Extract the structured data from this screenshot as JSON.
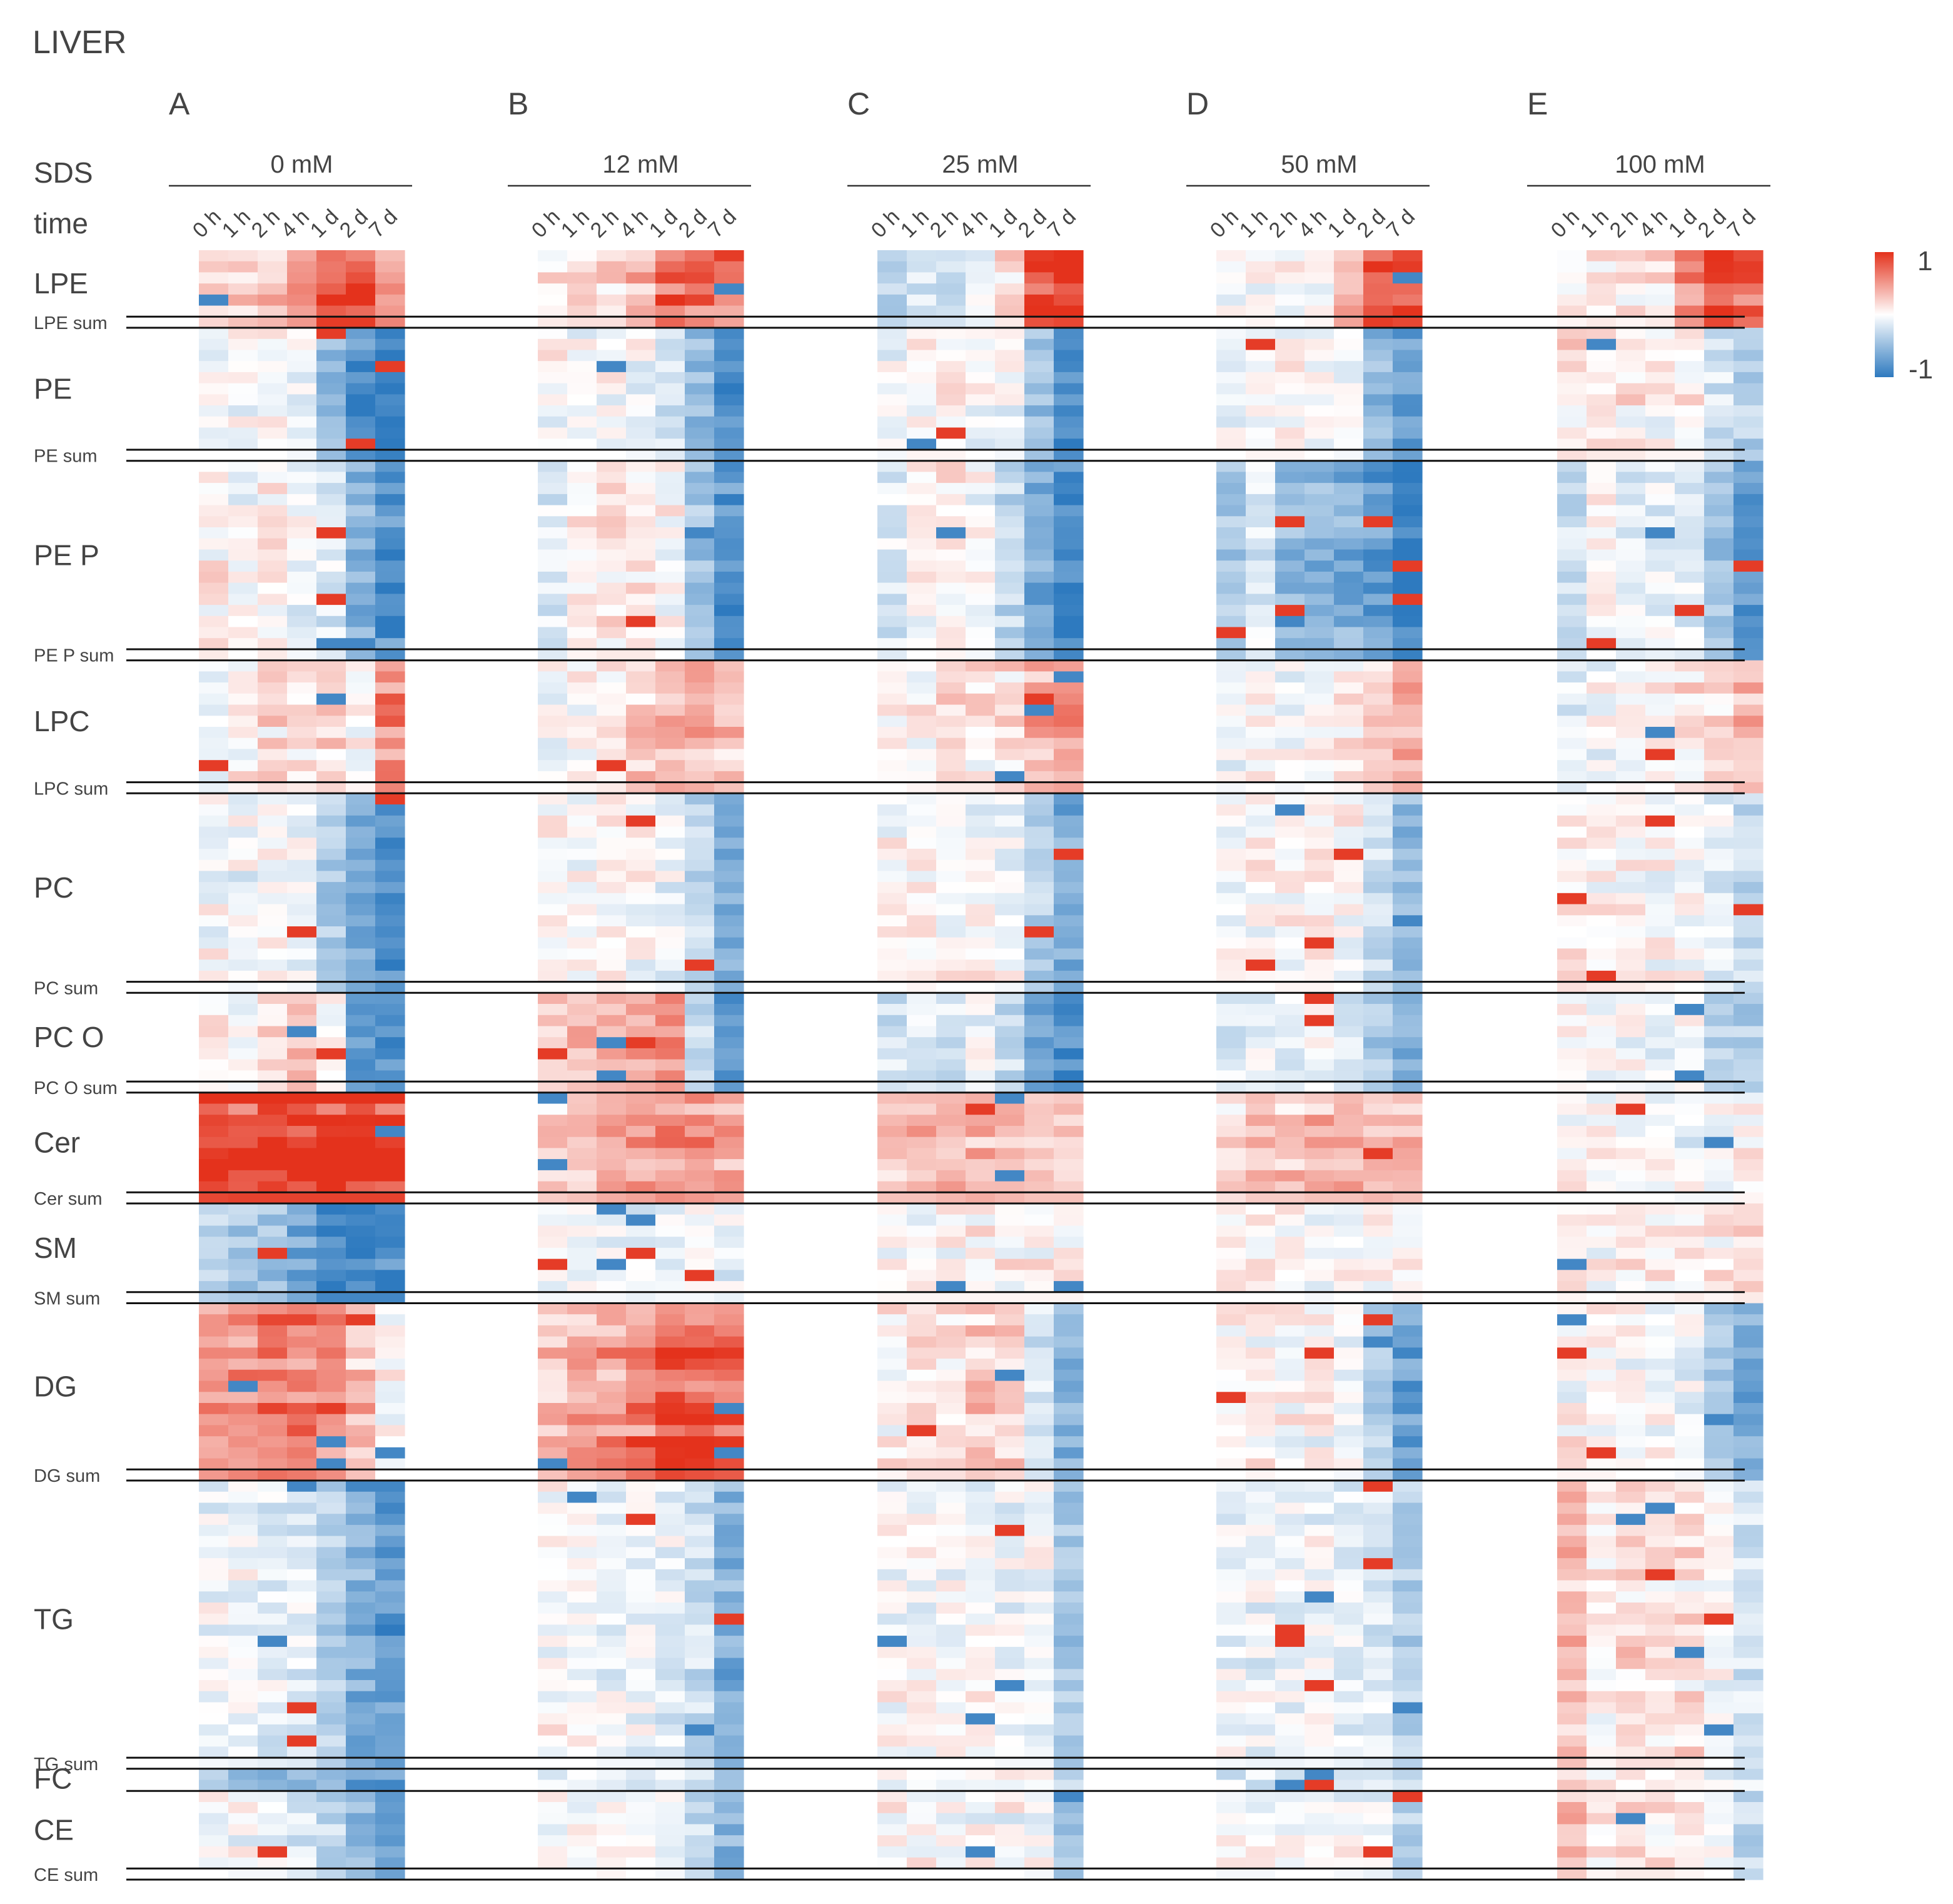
{
  "chart_data": {
    "type": "heatmap",
    "title": "LIVER",
    "sds_label": "SDS",
    "time_label": "time",
    "panels": [
      {
        "letter": "A",
        "sds": "0 mM"
      },
      {
        "letter": "B",
        "sds": "12 mM"
      },
      {
        "letter": "C",
        "sds": "25 mM"
      },
      {
        "letter": "D",
        "sds": "50 mM"
      },
      {
        "letter": "E",
        "sds": "100 mM"
      }
    ],
    "timepoints": [
      "0 h",
      "1 h",
      "2 h",
      "4 h",
      "1 d",
      "2 d",
      "7 d"
    ],
    "colorbar": {
      "max_label": "1",
      "min_label": "-1",
      "vmin": -1,
      "vmax": 1,
      "high_color": "#e4321c",
      "mid_color": "#ffffff",
      "low_color": "#2e7abf"
    },
    "groups": [
      {
        "name": "LPE",
        "sum_label": "LPE sum",
        "rows": 7,
        "trend": [
          [
            0.2,
            0.3,
            0.35,
            0.5,
            0.95,
            0.95,
            0.6
          ],
          [
            0.1,
            0.15,
            0.15,
            0.35,
            0.75,
            0.6,
            0.45
          ],
          [
            -0.3,
            -0.2,
            -0.2,
            -0.1,
            0.1,
            0.85,
            0.9
          ],
          [
            0.0,
            0.05,
            0.0,
            0.05,
            0.45,
            0.95,
            0.9
          ],
          [
            0.05,
            0.1,
            0.05,
            0.1,
            0.5,
            0.9,
            0.7
          ]
        ]
      },
      {
        "name": "PE",
        "sum_label": "PE sum",
        "rows": 12,
        "trend": [
          [
            0.0,
            0.0,
            0.0,
            -0.05,
            -0.5,
            -0.85,
            -0.95
          ],
          [
            0.0,
            0.0,
            0.0,
            -0.05,
            -0.15,
            -0.5,
            -0.8
          ],
          [
            -0.05,
            0.05,
            0.05,
            0.0,
            -0.05,
            -0.45,
            -0.85
          ],
          [
            0.0,
            0.05,
            0.05,
            0.0,
            -0.05,
            -0.5,
            -0.7
          ],
          [
            0.15,
            0.1,
            0.1,
            0.05,
            0.05,
            -0.2,
            -0.35
          ]
        ]
      },
      {
        "name": "PE P",
        "sum_label": "PE P sum",
        "rows": 18,
        "trend": [
          [
            0.1,
            0.0,
            0.1,
            -0.05,
            -0.15,
            -0.55,
            -0.85
          ],
          [
            -0.15,
            0.05,
            0.1,
            0.1,
            0.0,
            -0.45,
            -0.8
          ],
          [
            -0.15,
            0.0,
            0.05,
            -0.05,
            -0.3,
            -0.6,
            -0.9
          ],
          [
            -0.4,
            -0.15,
            -0.5,
            -0.55,
            -0.6,
            -0.75,
            -0.95
          ],
          [
            -0.25,
            0.0,
            -0.15,
            -0.1,
            -0.15,
            -0.45,
            -0.8
          ]
        ]
      },
      {
        "name": "LPC",
        "sum_label": "LPC sum",
        "rows": 12,
        "trend": [
          [
            -0.1,
            0.05,
            0.15,
            0.1,
            0.2,
            0.05,
            0.6
          ],
          [
            0.0,
            0.05,
            0.1,
            0.3,
            0.45,
            0.4,
            0.3
          ],
          [
            0.0,
            0.05,
            0.1,
            0.1,
            0.2,
            0.4,
            0.45
          ],
          [
            -0.05,
            0.0,
            -0.05,
            0.0,
            0.05,
            0.25,
            0.4
          ],
          [
            -0.15,
            0.0,
            0.05,
            0.0,
            0.15,
            0.2,
            0.35
          ]
        ]
      },
      {
        "name": "PC",
        "sum_label": "PC sum",
        "rows": 18,
        "trend": [
          [
            0.0,
            -0.05,
            0.0,
            -0.05,
            -0.4,
            -0.65,
            -0.8
          ],
          [
            0.0,
            0.0,
            0.05,
            0.0,
            -0.05,
            -0.3,
            -0.6
          ],
          [
            0.0,
            0.05,
            0.0,
            0.0,
            -0.05,
            -0.35,
            -0.65
          ],
          [
            0.0,
            0.0,
            0.05,
            0.05,
            0.0,
            -0.25,
            -0.5
          ],
          [
            0.15,
            0.1,
            0.1,
            0.05,
            0.0,
            -0.1,
            -0.3
          ]
        ]
      },
      {
        "name": "PC O",
        "sum_label": "PC O sum",
        "rows": 9,
        "trend": [
          [
            0.05,
            -0.05,
            0.15,
            0.35,
            0.05,
            -0.7,
            -0.8
          ],
          [
            0.2,
            0.3,
            0.35,
            0.4,
            0.5,
            -0.3,
            -0.75
          ],
          [
            -0.2,
            -0.15,
            -0.2,
            -0.05,
            -0.25,
            -0.75,
            -0.85
          ],
          [
            -0.15,
            -0.1,
            -0.15,
            0.0,
            -0.2,
            -0.4,
            -0.6
          ],
          [
            0.05,
            0.0,
            -0.05,
            -0.1,
            0.05,
            -0.35,
            -0.4
          ]
        ]
      },
      {
        "name": "Cer",
        "sum_label": "Cer sum",
        "rows": 10,
        "trend": [
          [
            0.9,
            0.92,
            0.92,
            0.92,
            0.92,
            0.92,
            0.92
          ],
          [
            0.25,
            0.3,
            0.4,
            0.45,
            0.55,
            0.5,
            0.45
          ],
          [
            0.3,
            0.3,
            0.35,
            0.4,
            0.35,
            0.3,
            0.3
          ],
          [
            0.15,
            0.25,
            0.25,
            0.3,
            0.3,
            0.35,
            0.3
          ],
          [
            0.0,
            0.0,
            0.0,
            0.0,
            -0.05,
            -0.05,
            0.05
          ]
        ]
      },
      {
        "name": "SM",
        "sum_label": "SM sum",
        "rows": 9,
        "trend": [
          [
            -0.35,
            -0.4,
            -0.45,
            -0.65,
            -0.9,
            -0.9,
            -0.9
          ],
          [
            -0.05,
            -0.05,
            -0.05,
            -0.1,
            -0.05,
            -0.05,
            -0.1
          ],
          [
            0.05,
            0.05,
            0.05,
            0.05,
            0.05,
            0.05,
            0.05
          ],
          [
            0.0,
            0.0,
            0.0,
            -0.05,
            0.0,
            0.0,
            0.05
          ],
          [
            0.05,
            0.0,
            0.05,
            0.05,
            0.1,
            0.05,
            0.1
          ]
        ]
      },
      {
        "name": "DG",
        "sum_label": "DG sum",
        "rows": 16,
        "trend": [
          [
            0.5,
            0.6,
            0.7,
            0.65,
            0.55,
            0.3,
            0.0
          ],
          [
            0.3,
            0.45,
            0.5,
            0.7,
            0.9,
            0.85,
            0.8
          ],
          [
            0.05,
            0.15,
            0.15,
            0.25,
            0.2,
            -0.2,
            -0.6
          ],
          [
            0.0,
            0.05,
            0.0,
            0.0,
            -0.05,
            -0.35,
            -0.75
          ],
          [
            0.05,
            0.05,
            0.0,
            0.0,
            -0.05,
            -0.35,
            -0.6
          ]
        ]
      },
      {
        "name": "TG",
        "sum_label": "TG sum",
        "rows": 26,
        "trend": [
          [
            -0.05,
            -0.08,
            -0.12,
            -0.15,
            -0.35,
            -0.6,
            -0.75
          ],
          [
            0.0,
            0.0,
            -0.05,
            -0.05,
            -0.1,
            -0.25,
            -0.6
          ],
          [
            0.0,
            0.0,
            0.0,
            0.0,
            -0.05,
            -0.05,
            -0.45
          ],
          [
            -0.05,
            -0.08,
            -0.08,
            -0.05,
            -0.1,
            -0.15,
            -0.35
          ],
          [
            0.3,
            0.05,
            0.15,
            0.15,
            0.1,
            0.0,
            -0.2
          ]
        ]
      },
      {
        "name": "FC",
        "sum_label": "",
        "rows": 2,
        "trend": [
          [
            -0.35,
            -0.45,
            -0.55,
            -0.5,
            -0.6,
            -0.7,
            -0.8
          ],
          [
            -0.05,
            -0.05,
            0.0,
            -0.05,
            -0.1,
            -0.2,
            -0.6
          ],
          [
            0.0,
            0.0,
            0.0,
            0.0,
            0.0,
            -0.05,
            -0.35
          ],
          [
            -0.1,
            -0.1,
            -0.05,
            -0.05,
            -0.1,
            -0.1,
            -0.3
          ],
          [
            0.25,
            0.05,
            0.1,
            0.1,
            0.05,
            0.0,
            -0.15
          ]
        ]
      },
      {
        "name": "CE",
        "sum_label": "CE sum",
        "rows": 8,
        "trend": [
          [
            0.0,
            -0.05,
            -0.05,
            -0.15,
            -0.3,
            -0.5,
            -0.7
          ],
          [
            0.0,
            0.0,
            0.05,
            0.0,
            -0.05,
            -0.25,
            -0.6
          ],
          [
            0.0,
            0.0,
            0.0,
            0.0,
            0.0,
            -0.05,
            -0.5
          ],
          [
            -0.05,
            -0.05,
            0.0,
            0.0,
            -0.05,
            -0.1,
            -0.3
          ],
          [
            0.25,
            0.05,
            0.1,
            0.1,
            0.05,
            0.0,
            -0.3
          ]
        ]
      }
    ]
  }
}
